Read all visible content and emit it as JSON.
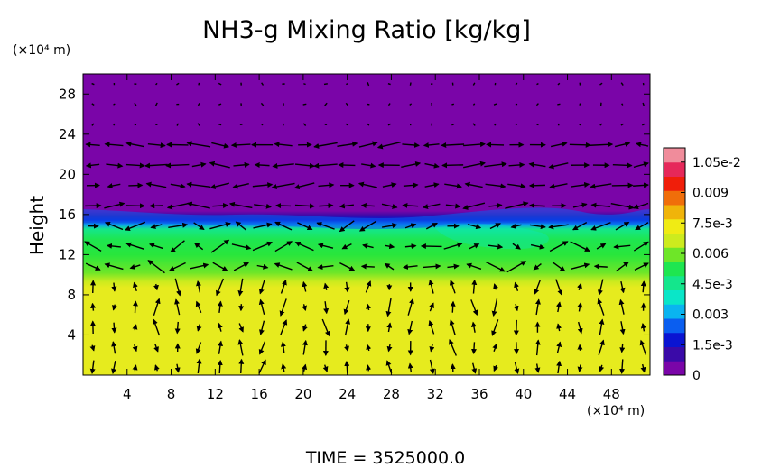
{
  "chart_data": {
    "type": "heatmap",
    "title": "NH3-g Mixing Ratio [kg/kg]",
    "ylabel": "Height",
    "y_unit": "(×10⁴ m)",
    "x_unit": "(×10⁴ m)",
    "xlim": [
      0,
      51.5
    ],
    "ylim": [
      0,
      30
    ],
    "x_ticks": [
      "4",
      "8",
      "12",
      "16",
      "20",
      "24",
      "28",
      "32",
      "36",
      "40",
      "44",
      "48"
    ],
    "y_ticks": [
      "4",
      "8",
      "12",
      "16",
      "20",
      "24",
      "28"
    ],
    "grid": false,
    "overlay": "wind vector arrows",
    "colorbar": {
      "range": [
        0,
        0.0112
      ],
      "labels": [
        "1.05e-2",
        "0.009",
        "7.5e-3",
        "0.006",
        "4.5e-3",
        "0.003",
        "1.5e-3",
        "0"
      ],
      "label_values": [
        0.0105,
        0.009,
        0.0075,
        0.006,
        0.0045,
        0.003,
        0.0015,
        0
      ],
      "colors": [
        "#7a05a8",
        "#3a0aa8",
        "#0a14d2",
        "#0a5ef0",
        "#0ab4f0",
        "#0ae6c8",
        "#14e68c",
        "#1ee650",
        "#6ee628",
        "#cdeb1e",
        "#f0eb14",
        "#f0b40a",
        "#f06e0a",
        "#f01e0a",
        "#e6285a",
        "#f08c9b"
      ]
    },
    "field": {
      "layers": [
        {
          "name": "upper",
          "y_range": [
            16.2,
            30
          ],
          "value": 0
        },
        {
          "name": "interface",
          "y_range": [
            14.8,
            16.2
          ],
          "value": 0.003
        },
        {
          "name": "middle",
          "y_range": [
            9.5,
            14.8
          ],
          "value": 0.0058
        },
        {
          "name": "lower",
          "y_range": [
            0,
            9.5
          ],
          "value": 0.0082
        }
      ]
    }
  },
  "footer": {
    "time_label": "TIME = 3525000.0"
  }
}
